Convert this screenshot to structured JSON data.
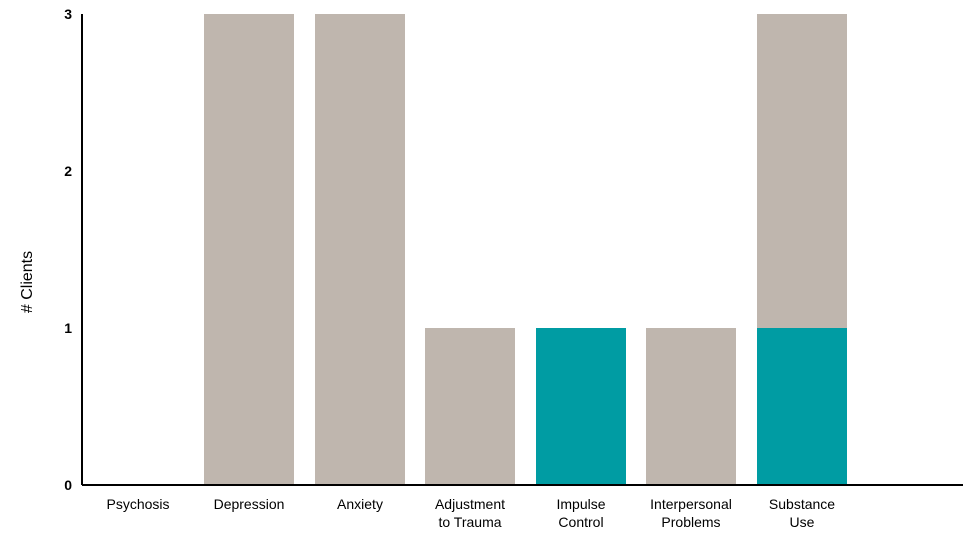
{
  "chart_data": {
    "type": "bar",
    "title": "",
    "xlabel": "",
    "ylabel": "# Clients",
    "ylim": [
      0,
      3
    ],
    "yticks": [
      "0",
      "1",
      "2",
      "3"
    ],
    "grid": false,
    "legend": "none",
    "categories": [
      [
        "Psychosis"
      ],
      [
        "Depression"
      ],
      [
        "Anxiety"
      ],
      [
        "Adjustment",
        "to Trauma"
      ],
      [
        "Impulse",
        "Control"
      ],
      [
        "Interpersonal",
        "Problems"
      ],
      [
        "Substance",
        "Use"
      ]
    ],
    "series": [
      {
        "color": "#bfb6ae",
        "values": [
          0,
          3,
          3,
          1,
          0,
          1,
          3
        ]
      },
      {
        "color": "#009ca3",
        "values": [
          0,
          0,
          0,
          0,
          1,
          0,
          1
        ]
      }
    ]
  }
}
